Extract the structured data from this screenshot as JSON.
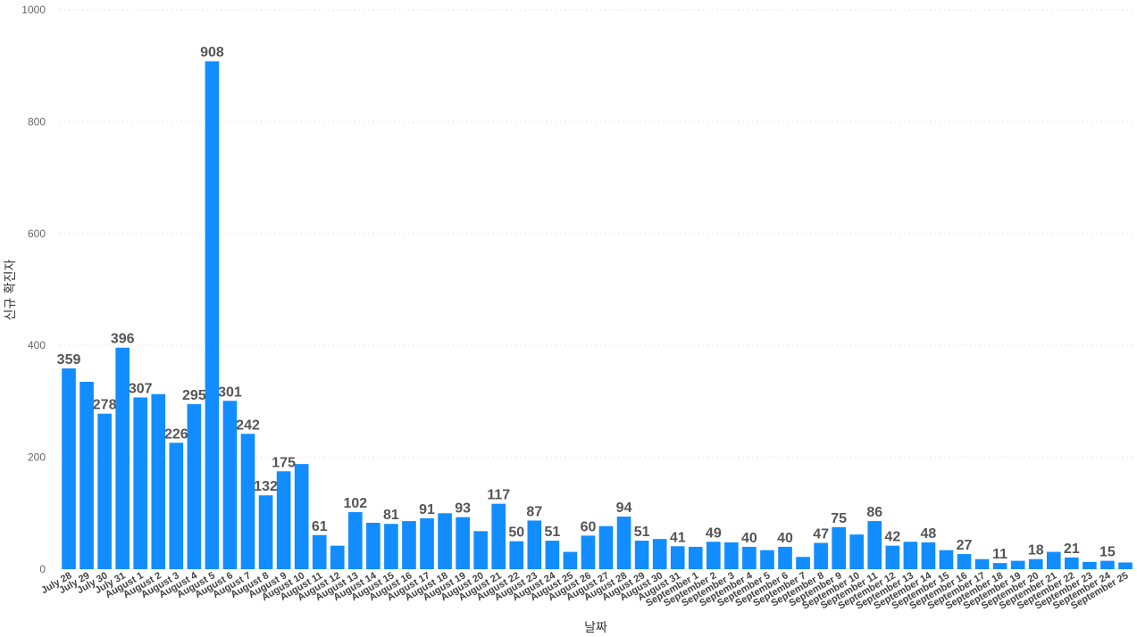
{
  "chart_data": {
    "type": "bar",
    "xlabel": "날짜",
    "ylabel": "신규 확진자",
    "ylim": [
      0,
      1000
    ],
    "yticks": [
      0,
      200,
      400,
      600,
      800,
      1000
    ],
    "grid": true,
    "bar_color": "#118DFF",
    "categories": [
      "July 28",
      "July 29",
      "July 30",
      "July 31",
      "August 1",
      "August 2",
      "August 3",
      "August 4",
      "August 5",
      "August 6",
      "August 7",
      "August 8",
      "August 9",
      "August 10",
      "August 11",
      "August 12",
      "August 13",
      "August 14",
      "August 15",
      "August 16",
      "August 17",
      "August 18",
      "August 19",
      "August 20",
      "August 21",
      "August 22",
      "August 23",
      "August 24",
      "August 25",
      "August 26",
      "August 27",
      "August 28",
      "August 29",
      "August 30",
      "August 31",
      "September 1",
      "September 2",
      "September 3",
      "September 4",
      "September 5",
      "September 6",
      "September 7",
      "September 8",
      "September 9",
      "September 10",
      "September 11",
      "September 12",
      "September 13",
      "September 14",
      "September 15",
      "September 16",
      "September 17",
      "September 18",
      "September 19",
      "September 20",
      "September 21",
      "September 22",
      "September 23",
      "September 24",
      "September 25"
    ],
    "values": [
      359,
      335,
      278,
      396,
      307,
      313,
      226,
      295,
      908,
      301,
      242,
      132,
      175,
      188,
      61,
      42,
      102,
      83,
      81,
      86,
      91,
      100,
      93,
      68,
      117,
      50,
      87,
      51,
      31,
      60,
      77,
      94,
      51,
      54,
      41,
      40,
      49,
      48,
      40,
      34,
      40,
      22,
      47,
      75,
      62,
      86,
      42,
      49,
      48,
      34,
      27,
      18,
      11,
      15,
      18,
      31,
      21,
      13,
      15,
      12
    ],
    "data_labels": [
      359,
      null,
      278,
      396,
      307,
      null,
      226,
      295,
      908,
      301,
      242,
      132,
      175,
      null,
      61,
      null,
      102,
      null,
      81,
      null,
      91,
      null,
      93,
      null,
      117,
      50,
      87,
      51,
      null,
      60,
      null,
      94,
      51,
      null,
      41,
      null,
      49,
      null,
      40,
      null,
      40,
      null,
      47,
      75,
      null,
      86,
      42,
      null,
      48,
      null,
      27,
      null,
      11,
      null,
      18,
      null,
      21,
      null,
      15,
      null
    ]
  }
}
